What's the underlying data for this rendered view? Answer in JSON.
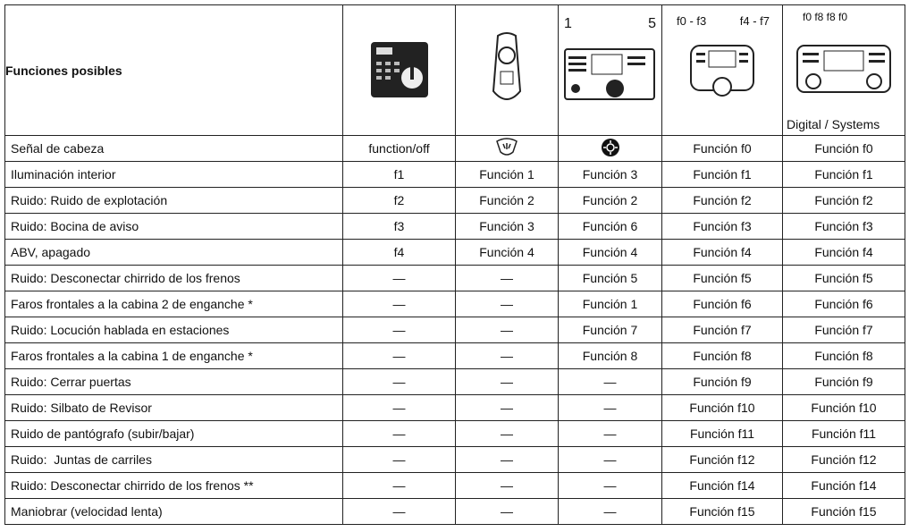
{
  "header": {
    "title": "Funciones posibles",
    "cs_left": "1",
    "cs_right": "5",
    "mobile_left": "f0 - f3",
    "mobile_right": "f4 - f7",
    "digital_keys": "f0 f8 f8 f0",
    "digital_caption": "Digital / Systems"
  },
  "head_row": {
    "label": "Señal de cabeza",
    "cells": [
      "function/off",
      "Función f0",
      "Función f0"
    ]
  },
  "rows": [
    [
      "Iluminación interior",
      "f1",
      "Función 1",
      "Función 3",
      "Función f1",
      "Función f1"
    ],
    [
      "Ruido: Ruido de explotación",
      "f2",
      "Función 2",
      "Función 2",
      "Función f2",
      "Función f2"
    ],
    [
      "Ruido: Bocina de aviso",
      "f3",
      "Función 3",
      "Función 6",
      "Función f3",
      "Función f3"
    ],
    [
      "ABV, apagado",
      "f4",
      "Función 4",
      "Función 4",
      "Función f4",
      "Función f4"
    ],
    [
      "Ruido: Desconectar chirrido de los frenos",
      "—",
      "—",
      "Función 5",
      "Función f5",
      "Función f5"
    ],
    [
      "Faros frontales a la cabina 2 de enganche *",
      "—",
      "—",
      "Función 1",
      "Función f6",
      "Función f6"
    ],
    [
      "Ruido: Locución hablada en estaciones",
      "—",
      "—",
      "Función 7",
      "Función f7",
      "Función f7"
    ],
    [
      "Faros frontales a la cabina 1 de enganche *",
      "—",
      "—",
      "Función 8",
      "Función f8",
      "Función f8"
    ],
    [
      "Ruido: Cerrar puertas",
      "—",
      "—",
      "—",
      "Función f9",
      "Función f9"
    ],
    [
      "Ruido: Silbato de Revisor",
      "—",
      "—",
      "—",
      "Función f10",
      "Función f10"
    ],
    [
      "Ruido de pantógrafo (subir/bajar)",
      "—",
      "—",
      "—",
      "Función f11",
      "Función f11"
    ],
    [
      "Ruido:  Juntas de carriles",
      "—",
      "—",
      "—",
      "Función f12",
      "Función f12"
    ],
    [
      "Ruido: Desconectar chirrido de los frenos **",
      "—",
      "—",
      "—",
      "Función f14",
      "Función f14"
    ],
    [
      "Maniobrar (velocidad lenta)",
      "—",
      "—",
      "—",
      "Función f15",
      "Función f15"
    ]
  ]
}
